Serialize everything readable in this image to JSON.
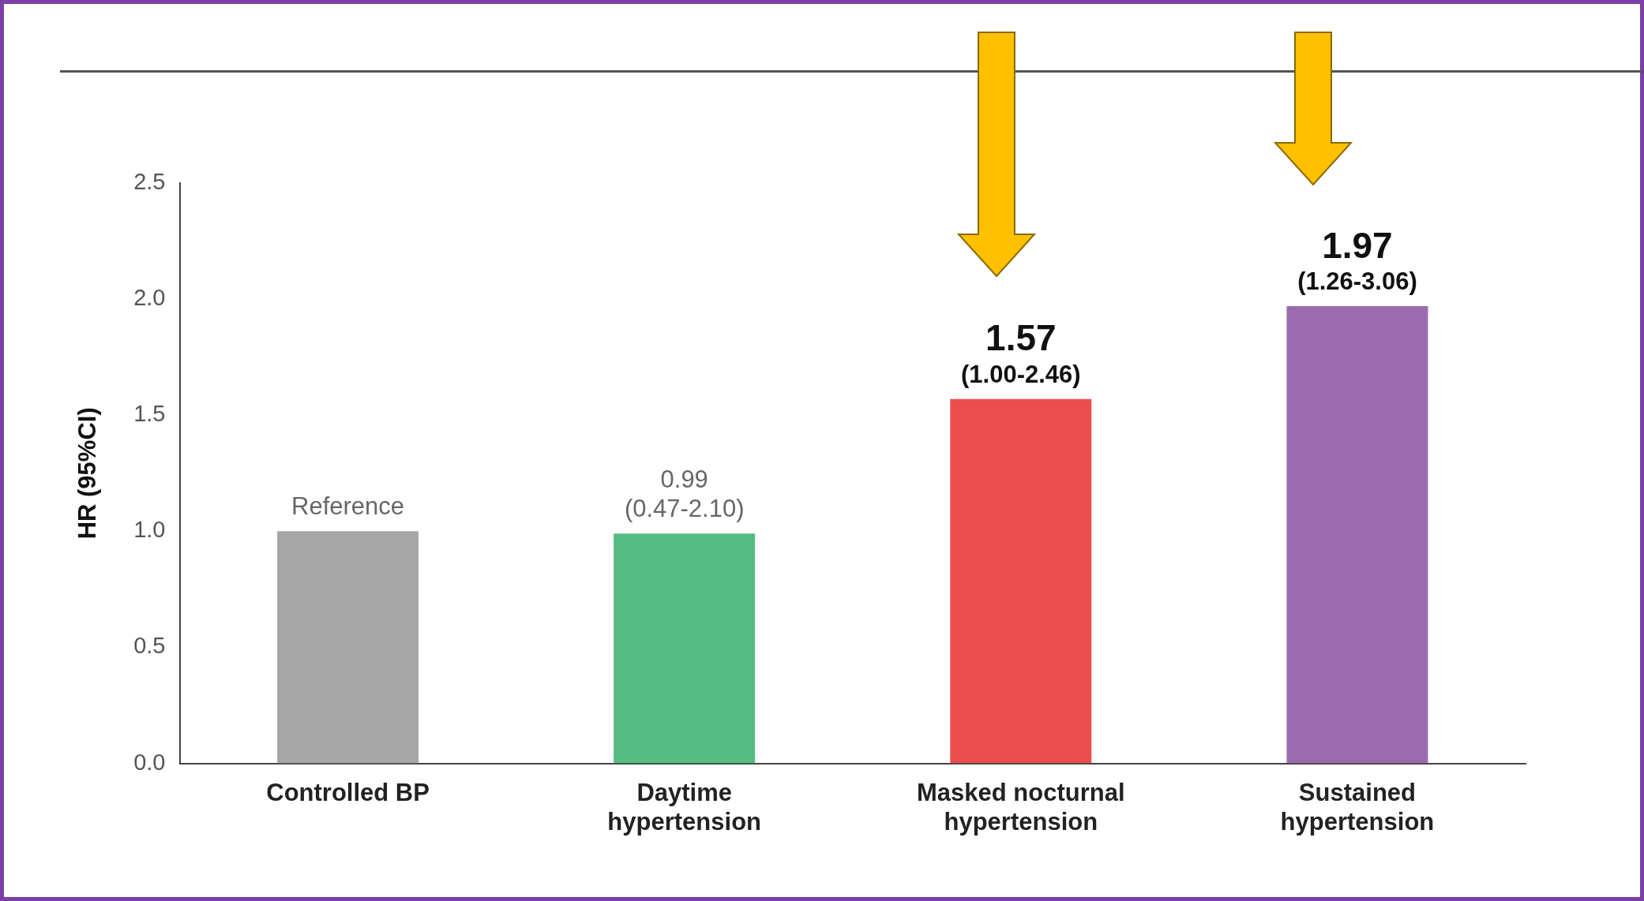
{
  "chart_data": {
    "type": "bar",
    "ylabel": "HR (95%CI)",
    "categories": [
      "Controlled BP",
      "Daytime hypertension",
      "Masked nocturnal hypertension",
      "Sustained hypertension"
    ],
    "values": [
      1.0,
      0.99,
      1.57,
      1.97
    ],
    "colors": [
      "#a6a6a6",
      "#55bb80",
      "#eb4d4d",
      "#9b6bb0"
    ],
    "value_labels": [
      "Reference",
      "0.99\n(0.47-2.10)",
      "1.57\n(1.00-2.46)",
      "1.97\n(1.26-3.06)"
    ],
    "ylim": [
      0,
      2.5
    ],
    "yticks": [
      {
        "value": 0,
        "label": "0.0"
      },
      0.5,
      {
        "value": 1,
        "label": "1.0"
      },
      1.5,
      {
        "value": 2,
        "label": "2.0"
      },
      2.5
    ]
  }
}
